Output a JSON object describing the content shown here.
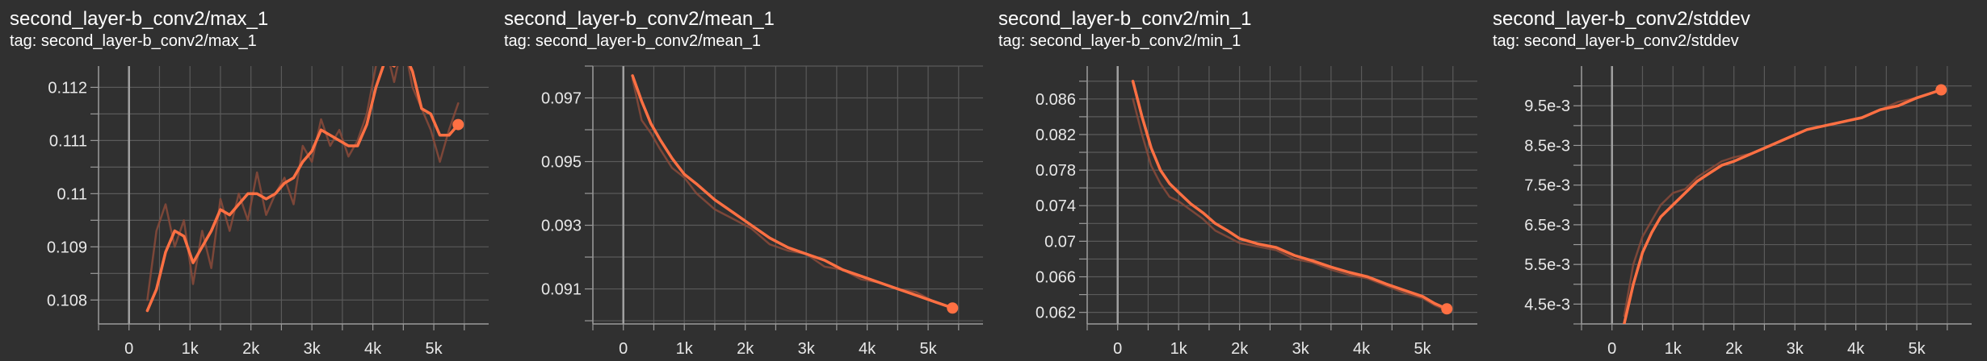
{
  "chart_data": [
    {
      "type": "line",
      "title": "second_layer-b_conv2/max_1",
      "subtitle": "tag: second_layer-b_conv2/max_1",
      "xlim": [
        -500,
        5900
      ],
      "ylim": [
        0.10755,
        0.1124
      ],
      "xticks": [
        0,
        1000,
        2000,
        3000,
        4000,
        5000
      ],
      "xtick_labels": [
        "0",
        "1k",
        "2k",
        "3k",
        "4k",
        "5k"
      ],
      "yticks": [
        0.108,
        0.109,
        0.11,
        0.111,
        0.112
      ],
      "ytick_labels": [
        "0.108",
        "0.109",
        "0.11",
        "0.111",
        "0.112"
      ],
      "grid": true,
      "series": [
        {
          "role": "raw",
          "x": [
            300,
            450,
            600,
            750,
            900,
            1050,
            1200,
            1350,
            1500,
            1650,
            1800,
            1950,
            2100,
            2250,
            2400,
            2550,
            2700,
            2850,
            3000,
            3150,
            3300,
            3450,
            3600,
            3750,
            3900,
            4050,
            4200,
            4350,
            4500,
            4650,
            4800,
            4950,
            5100,
            5250,
            5400
          ],
          "y": [
            0.108,
            0.1093,
            0.1098,
            0.109,
            0.1095,
            0.1083,
            0.1093,
            0.1086,
            0.1099,
            0.1093,
            0.11,
            0.1095,
            0.1104,
            0.1096,
            0.11,
            0.1103,
            0.1098,
            0.1109,
            0.1106,
            0.1114,
            0.1109,
            0.1112,
            0.1107,
            0.111,
            0.1115,
            0.1124,
            0.1128,
            0.1121,
            0.1129,
            0.112,
            0.1116,
            0.1112,
            0.1106,
            0.1112,
            0.1117
          ]
        },
        {
          "role": "smoothed",
          "x": [
            300,
            450,
            600,
            750,
            900,
            1050,
            1200,
            1350,
            1500,
            1650,
            1800,
            1950,
            2100,
            2250,
            2400,
            2550,
            2700,
            2850,
            3000,
            3150,
            3300,
            3450,
            3600,
            3750,
            3900,
            4050,
            4200,
            4350,
            4500,
            4650,
            4800,
            4950,
            5100,
            5250,
            5400
          ],
          "y": [
            0.1078,
            0.1082,
            0.1089,
            0.1093,
            0.1092,
            0.1087,
            0.109,
            0.1093,
            0.1097,
            0.1096,
            0.1098,
            0.11,
            0.11,
            0.1099,
            0.11,
            0.1102,
            0.1103,
            0.1106,
            0.1108,
            0.1112,
            0.1111,
            0.111,
            0.1109,
            0.1109,
            0.1113,
            0.112,
            0.1125,
            0.1124,
            0.1127,
            0.1123,
            0.1116,
            0.1115,
            0.1111,
            0.1111,
            0.1113
          ]
        }
      ]
    },
    {
      "type": "line",
      "title": "second_layer-b_conv2/mean_1",
      "subtitle": "tag: second_layer-b_conv2/mean_1",
      "xlim": [
        -500,
        5900
      ],
      "ylim": [
        0.0899,
        0.098
      ],
      "xticks": [
        0,
        1000,
        2000,
        3000,
        4000,
        5000
      ],
      "xtick_labels": [
        "0",
        "1k",
        "2k",
        "3k",
        "4k",
        "5k"
      ],
      "yticks": [
        0.091,
        0.093,
        0.095,
        0.097
      ],
      "ytick_labels": [
        "0.091",
        "0.093",
        "0.095",
        "0.097"
      ],
      "grid": true,
      "series": [
        {
          "role": "raw",
          "x": [
            150,
            300,
            450,
            600,
            800,
            1000,
            1200,
            1500,
            1800,
            2100,
            2400,
            2700,
            3000,
            3300,
            3600,
            3900,
            4200,
            4500,
            4800,
            5100,
            5400
          ],
          "y": [
            0.0976,
            0.0963,
            0.0959,
            0.0954,
            0.0948,
            0.0945,
            0.094,
            0.0935,
            0.0932,
            0.0929,
            0.0924,
            0.0922,
            0.0921,
            0.0917,
            0.0916,
            0.0913,
            0.0912,
            0.091,
            0.0909,
            0.0906,
            0.0904
          ]
        },
        {
          "role": "smoothed",
          "x": [
            150,
            300,
            450,
            600,
            800,
            1000,
            1200,
            1500,
            1800,
            2100,
            2400,
            2700,
            3000,
            3300,
            3600,
            3900,
            4200,
            4500,
            4800,
            5100,
            5400
          ],
          "y": [
            0.0977,
            0.0969,
            0.0962,
            0.0957,
            0.0951,
            0.0946,
            0.0943,
            0.0938,
            0.0934,
            0.093,
            0.0926,
            0.0923,
            0.0921,
            0.0919,
            0.0916,
            0.0914,
            0.0912,
            0.091,
            0.0908,
            0.0906,
            0.0904
          ]
        }
      ]
    },
    {
      "type": "line",
      "title": "second_layer-b_conv2/min_1",
      "subtitle": "tag: second_layer-b_conv2/min_1",
      "xlim": [
        -500,
        5900
      ],
      "ylim": [
        0.0607,
        0.0897
      ],
      "xticks": [
        0,
        1000,
        2000,
        3000,
        4000,
        5000
      ],
      "xtick_labels": [
        "0",
        "1k",
        "2k",
        "3k",
        "4k",
        "5k"
      ],
      "yticks": [
        0.062,
        0.066,
        0.07,
        0.074,
        0.078,
        0.082,
        0.086
      ],
      "ytick_labels": [
        "0.062",
        "0.066",
        "0.07",
        "0.074",
        "0.078",
        "0.082",
        "0.086"
      ],
      "grid": true,
      "series": [
        {
          "role": "raw",
          "x": [
            250,
            400,
            550,
            700,
            850,
            1000,
            1200,
            1400,
            1600,
            1800,
            2000,
            2300,
            2600,
            2900,
            3200,
            3500,
            3800,
            4100,
            4400,
            4700,
            5000,
            5200,
            5400
          ],
          "y": [
            0.086,
            0.082,
            0.0785,
            0.0765,
            0.075,
            0.0745,
            0.0735,
            0.0725,
            0.0712,
            0.0705,
            0.0698,
            0.0694,
            0.069,
            0.068,
            0.0676,
            0.0668,
            0.0662,
            0.0658,
            0.065,
            0.0642,
            0.0636,
            0.0628,
            0.0622
          ]
        },
        {
          "role": "smoothed",
          "x": [
            250,
            400,
            550,
            700,
            850,
            1000,
            1200,
            1400,
            1600,
            1800,
            2000,
            2300,
            2600,
            2900,
            3200,
            3500,
            3800,
            4100,
            4400,
            4700,
            5000,
            5200,
            5400
          ],
          "y": [
            0.088,
            0.084,
            0.0805,
            0.078,
            0.0765,
            0.0755,
            0.0742,
            0.0732,
            0.072,
            0.0712,
            0.0703,
            0.0697,
            0.0693,
            0.0684,
            0.0678,
            0.0671,
            0.0665,
            0.066,
            0.0652,
            0.0645,
            0.0638,
            0.063,
            0.0624
          ]
        }
      ]
    },
    {
      "type": "line",
      "title": "second_layer-b_conv2/stddev",
      "subtitle": "tag: second_layer-b_conv2/stddev",
      "xlim": [
        -500,
        5900
      ],
      "ylim": [
        0.004,
        0.0105
      ],
      "xticks": [
        0,
        1000,
        2000,
        3000,
        4000,
        5000
      ],
      "xtick_labels": [
        "0",
        "1k",
        "2k",
        "3k",
        "4k",
        "5k"
      ],
      "yticks": [
        0.0045,
        0.0055,
        0.0065,
        0.0075,
        0.0085,
        0.0095
      ],
      "ytick_labels": [
        "4.5e-3",
        "5.5e-3",
        "6.5e-3",
        "7.5e-3",
        "8.5e-3",
        "9.5e-3"
      ],
      "grid": true,
      "series": [
        {
          "role": "raw",
          "x": [
            200,
            350,
            500,
            650,
            800,
            1000,
            1200,
            1400,
            1600,
            1800,
            2000,
            2300,
            2600,
            2900,
            3200,
            3500,
            3800,
            4100,
            4400,
            4700,
            5000,
            5200,
            5400
          ],
          "y": [
            0.0042,
            0.0055,
            0.0062,
            0.0066,
            0.007,
            0.0073,
            0.0074,
            0.0077,
            0.0079,
            0.0081,
            0.0082,
            0.0083,
            0.0085,
            0.0087,
            0.0089,
            0.009,
            0.0091,
            0.0092,
            0.0094,
            0.0096,
            0.0097,
            0.0098,
            0.0099
          ]
        },
        {
          "role": "smoothed",
          "x": [
            200,
            350,
            500,
            650,
            800,
            1000,
            1200,
            1400,
            1600,
            1800,
            2000,
            2300,
            2600,
            2900,
            3200,
            3500,
            3800,
            4100,
            4400,
            4700,
            5000,
            5200,
            5400
          ],
          "y": [
            0.004,
            0.005,
            0.0058,
            0.0063,
            0.0067,
            0.007,
            0.0073,
            0.0076,
            0.0078,
            0.008,
            0.0081,
            0.0083,
            0.0085,
            0.0087,
            0.0089,
            0.009,
            0.0091,
            0.0092,
            0.0094,
            0.0095,
            0.0097,
            0.0098,
            0.0099
          ]
        }
      ]
    }
  ],
  "colors": {
    "background": "#303030",
    "grid": "#5a5a5a",
    "axis": "#9a9a9a",
    "zero_line": "#a0a0a0",
    "smoothed_line": "#ff7043",
    "raw_line": "#8a4a3a",
    "text": "#ffffff"
  }
}
